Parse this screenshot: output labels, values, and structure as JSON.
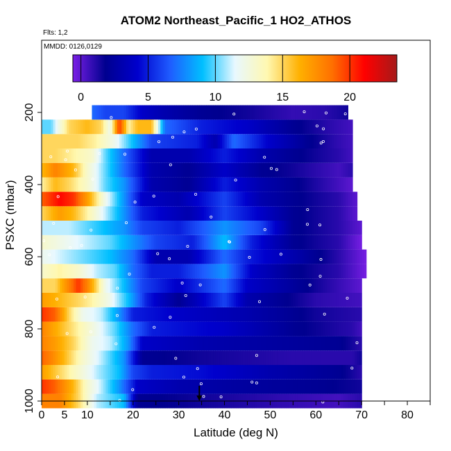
{
  "title": "ATOM2 Northeast_Pacific_1 HO2_ATHOS",
  "flights_text": "Flts: 1,2",
  "mmdd_text": "MMDD: 0126,0129",
  "chart_data": {
    "type": "heatmap",
    "title": "ATOM2 Northeast_Pacific_1 HO2_ATHOS",
    "xlabel": "Latitude (deg N)",
    "ylabel": "PSXC (mbar)",
    "xlim": [
      0,
      85
    ],
    "ylim": [
      1000,
      0
    ],
    "x_ticks": [
      0,
      5,
      10,
      20,
      30,
      40,
      50,
      60,
      70,
      80
    ],
    "y_ticks": [
      200,
      400,
      600,
      800,
      1000
    ],
    "colorbar": {
      "min": -0.6,
      "max": 23.5,
      "ticks": [
        0,
        5,
        10,
        15,
        20
      ]
    },
    "colors": [
      "#7b1fe6",
      "#00008f",
      "#0000cd",
      "#1f5cff",
      "#00bfff",
      "#e8f8ff",
      "#fff8b0",
      "#ffb000",
      "#ff7000",
      "#ff0000",
      "#a51a1a"
    ],
    "grid": false,
    "marker_latitude": 34.5,
    "altitude_bins": [
      {
        "p": 1000,
        "profile": [
          [
            0,
            18
          ],
          [
            4,
            18
          ],
          [
            8,
            15
          ],
          [
            12,
            11
          ],
          [
            18,
            9
          ],
          [
            21,
            2
          ],
          [
            35,
            1.5
          ],
          [
            55,
            0.8
          ],
          [
            65,
            0.5
          ],
          [
            70,
            1
          ]
        ]
      },
      {
        "p": 960,
        "profile": [
          [
            0,
            20
          ],
          [
            3,
            19
          ],
          [
            7,
            16
          ],
          [
            10,
            13
          ],
          [
            13,
            11
          ],
          [
            17,
            8
          ],
          [
            21,
            4
          ],
          [
            30,
            3
          ],
          [
            42,
            2.5
          ],
          [
            60,
            2
          ],
          [
            70,
            1.5
          ]
        ]
      },
      {
        "p": 920,
        "profile": [
          [
            0,
            17
          ],
          [
            4,
            15
          ],
          [
            8,
            13
          ],
          [
            12,
            11
          ],
          [
            17,
            9
          ],
          [
            20,
            6
          ],
          [
            24,
            5
          ],
          [
            35,
            4.5
          ],
          [
            50,
            3
          ],
          [
            65,
            2
          ],
          [
            70,
            1
          ]
        ]
      },
      {
        "p": 880,
        "profile": [
          [
            0,
            19
          ],
          [
            2,
            18
          ],
          [
            5,
            16
          ],
          [
            9,
            13
          ],
          [
            13,
            11
          ],
          [
            18,
            8
          ],
          [
            22,
            2
          ],
          [
            35,
            1.5
          ],
          [
            55,
            1
          ],
          [
            68,
            1
          ],
          [
            70,
            1.5
          ]
        ]
      },
      {
        "p": 840,
        "profile": [
          [
            0,
            18
          ],
          [
            3,
            17
          ],
          [
            7,
            15
          ],
          [
            11,
            12
          ],
          [
            15,
            11
          ],
          [
            19,
            8
          ],
          [
            22,
            4
          ],
          [
            35,
            3
          ],
          [
            50,
            2.5
          ],
          [
            65,
            2
          ],
          [
            70,
            1
          ]
        ]
      },
      {
        "p": 800,
        "profile": [
          [
            0,
            18
          ],
          [
            4,
            16
          ],
          [
            8,
            14
          ],
          [
            12,
            12
          ],
          [
            16,
            10
          ],
          [
            20,
            7
          ],
          [
            24,
            5
          ],
          [
            40,
            4
          ],
          [
            55,
            2
          ],
          [
            68,
            1
          ],
          [
            70,
            0.5
          ]
        ]
      },
      {
        "p": 760,
        "profile": [
          [
            0,
            20
          ],
          [
            3,
            19
          ],
          [
            6,
            15
          ],
          [
            9,
            12
          ],
          [
            13,
            11
          ],
          [
            17,
            8
          ],
          [
            20,
            5
          ],
          [
            30,
            4
          ],
          [
            45,
            3
          ],
          [
            60,
            1.5
          ],
          [
            70,
            1
          ]
        ]
      },
      {
        "p": 720,
        "profile": [
          [
            0,
            17
          ],
          [
            4,
            16
          ],
          [
            8,
            15
          ],
          [
            11,
            14
          ],
          [
            15,
            12
          ],
          [
            19,
            9
          ],
          [
            23,
            5
          ],
          [
            30,
            2
          ],
          [
            40,
            6
          ],
          [
            45,
            3
          ],
          [
            60,
            1
          ],
          [
            70,
            0.5
          ]
        ]
      },
      {
        "p": 680,
        "profile": [
          [
            0,
            15
          ],
          [
            3,
            15
          ],
          [
            6,
            18
          ],
          [
            8,
            20
          ],
          [
            10,
            18
          ],
          [
            14,
            12
          ],
          [
            18,
            9
          ],
          [
            22,
            6
          ],
          [
            30,
            4
          ],
          [
            40,
            7
          ],
          [
            45,
            4
          ],
          [
            60,
            1.5
          ],
          [
            70,
            0
          ]
        ]
      },
      {
        "p": 640,
        "profile": [
          [
            0,
            13
          ],
          [
            4,
            14
          ],
          [
            8,
            13
          ],
          [
            12,
            11
          ],
          [
            16,
            10
          ],
          [
            20,
            7
          ],
          [
            24,
            5
          ],
          [
            30,
            5
          ],
          [
            40,
            8
          ],
          [
            46,
            4
          ],
          [
            55,
            2
          ],
          [
            65,
            1
          ],
          [
            71,
            -0.5
          ]
        ]
      },
      {
        "p": 600,
        "profile": [
          [
            0,
            12
          ],
          [
            5,
            11
          ],
          [
            10,
            10
          ],
          [
            15,
            9
          ],
          [
            20,
            7
          ],
          [
            25,
            3
          ],
          [
            32,
            3
          ],
          [
            40,
            7
          ],
          [
            45,
            5
          ],
          [
            55,
            3
          ],
          [
            65,
            1
          ],
          [
            71,
            -0.5
          ]
        ]
      },
      {
        "p": 560,
        "profile": [
          [
            0,
            13
          ],
          [
            5,
            12
          ],
          [
            10,
            11
          ],
          [
            15,
            10
          ],
          [
            20,
            8
          ],
          [
            25,
            6
          ],
          [
            33,
            5
          ],
          [
            40,
            9
          ],
          [
            46,
            5
          ],
          [
            55,
            2
          ],
          [
            65,
            1
          ],
          [
            70,
            -0.5
          ]
        ]
      },
      {
        "p": 520,
        "profile": [
          [
            0,
            11
          ],
          [
            6,
            11
          ],
          [
            10,
            10
          ],
          [
            14,
            9
          ],
          [
            18,
            8
          ],
          [
            22,
            6
          ],
          [
            30,
            5
          ],
          [
            40,
            8
          ],
          [
            48,
            6
          ],
          [
            55,
            2
          ],
          [
            65,
            1
          ],
          [
            70,
            0
          ]
        ]
      },
      {
        "p": 480,
        "profile": [
          [
            0,
            15
          ],
          [
            4,
            17
          ],
          [
            7,
            16
          ],
          [
            10,
            14
          ],
          [
            14,
            11
          ],
          [
            18,
            8
          ],
          [
            22,
            5
          ],
          [
            32,
            3
          ],
          [
            40,
            6
          ],
          [
            48,
            4
          ],
          [
            55,
            2
          ],
          [
            65,
            1
          ],
          [
            69,
            0
          ]
        ]
      },
      {
        "p": 440,
        "profile": [
          [
            0,
            19
          ],
          [
            4,
            21
          ],
          [
            7,
            20
          ],
          [
            10,
            17
          ],
          [
            14,
            12
          ],
          [
            18,
            8
          ],
          [
            22,
            4
          ],
          [
            30,
            3
          ],
          [
            40,
            6
          ],
          [
            48,
            3
          ],
          [
            55,
            2
          ],
          [
            65,
            1
          ],
          [
            69,
            0
          ]
        ]
      },
      {
        "p": 400,
        "profile": [
          [
            0,
            14
          ],
          [
            3,
            16
          ],
          [
            6,
            15
          ],
          [
            10,
            13
          ],
          [
            14,
            10
          ],
          [
            18,
            8
          ],
          [
            24,
            3
          ],
          [
            32,
            2
          ],
          [
            40,
            5
          ],
          [
            48,
            3
          ],
          [
            55,
            2
          ],
          [
            65,
            0.5
          ],
          [
            68,
            0
          ]
        ]
      },
      {
        "p": 360,
        "profile": [
          [
            0,
            16
          ],
          [
            3,
            18
          ],
          [
            7,
            16
          ],
          [
            10,
            13
          ],
          [
            14,
            10
          ],
          [
            18,
            7
          ],
          [
            24,
            3
          ],
          [
            32,
            2
          ],
          [
            40,
            4
          ],
          [
            48,
            2
          ],
          [
            55,
            1.5
          ],
          [
            65,
            0.5
          ],
          [
            68,
            1
          ]
        ]
      },
      {
        "p": 320,
        "profile": [
          [
            0,
            15
          ],
          [
            3,
            15
          ],
          [
            7,
            14
          ],
          [
            11,
            13
          ],
          [
            14,
            10
          ],
          [
            18,
            7
          ],
          [
            24,
            3
          ],
          [
            32,
            3
          ],
          [
            40,
            5
          ],
          [
            48,
            3
          ],
          [
            55,
            2
          ],
          [
            65,
            1
          ],
          [
            68,
            0.5
          ]
        ]
      },
      {
        "p": 280,
        "profile": [
          [
            0,
            15
          ],
          [
            3,
            15
          ],
          [
            8,
            15
          ],
          [
            12,
            14
          ],
          [
            16,
            12
          ],
          [
            20,
            9
          ],
          [
            24,
            6
          ],
          [
            34,
            5
          ],
          [
            38,
            3
          ],
          [
            42,
            7
          ],
          [
            50,
            4
          ],
          [
            58,
            2
          ],
          [
            64,
            1
          ],
          [
            68,
            0.5
          ]
        ]
      },
      {
        "p": 240,
        "profile": [
          [
            0,
            10
          ],
          [
            2,
            10
          ],
          [
            6,
            15
          ],
          [
            10,
            16
          ],
          [
            13,
            15
          ],
          [
            15,
            12
          ],
          [
            17,
            20
          ],
          [
            19,
            14
          ],
          [
            21,
            16
          ],
          [
            24,
            16
          ],
          [
            27,
            7
          ],
          [
            35,
            5
          ],
          [
            45,
            4
          ],
          [
            55,
            2
          ],
          [
            63,
            1
          ],
          [
            68,
            0.5
          ]
        ]
      },
      {
        "p": 200,
        "profile": [
          [
            11,
            7
          ],
          [
            14,
            6
          ],
          [
            18,
            6
          ],
          [
            22,
            4
          ],
          [
            27,
            3
          ],
          [
            35,
            2
          ],
          [
            45,
            1.5
          ],
          [
            55,
            0.8
          ],
          [
            62,
            1
          ],
          [
            67,
            1.5
          ]
        ]
      }
    ]
  }
}
